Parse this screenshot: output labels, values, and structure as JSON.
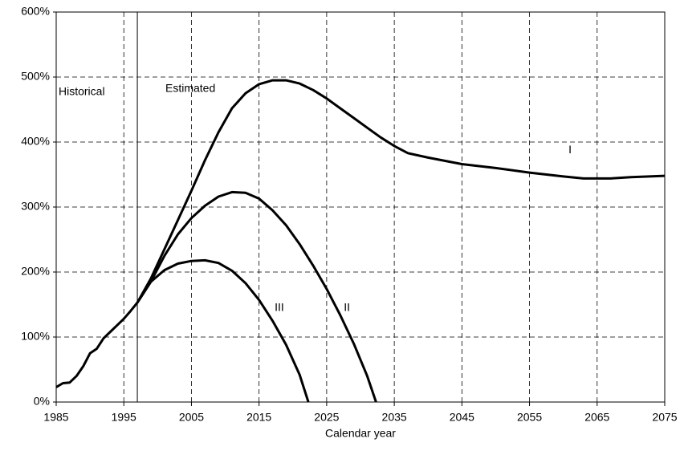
{
  "chart_data": {
    "type": "line",
    "x_label": "Calendar year",
    "annotations": [
      "Historical",
      "Estimated"
    ],
    "divider_x": 1997,
    "xlim": [
      1985,
      2075
    ],
    "xticks": [
      1985,
      1995,
      2005,
      2015,
      2025,
      2035,
      2045,
      2055,
      2065,
      2075
    ],
    "ylim": [
      0,
      600
    ],
    "yticks": [
      {
        "value": 0,
        "label": "0%"
      },
      {
        "value": 100,
        "label": "100%"
      },
      {
        "value": 200,
        "label": "200%"
      },
      {
        "value": 300,
        "label": "300%"
      },
      {
        "value": 400,
        "label": "400%"
      },
      {
        "value": 500,
        "label": "500%"
      },
      {
        "value": 600,
        "label": "600%"
      }
    ],
    "grid": true,
    "series": [
      {
        "name": "I",
        "color": "#000000",
        "x": [
          1985,
          1986,
          1987,
          1988,
          1989,
          1990,
          1991,
          1992,
          1993,
          1994,
          1995,
          1996,
          1997,
          1999,
          2001,
          2003,
          2005,
          2007,
          2009,
          2011,
          2013,
          2015,
          2017,
          2019,
          2021,
          2023,
          2025,
          2027,
          2029,
          2031,
          2033,
          2035,
          2037,
          2040,
          2045,
          2050,
          2055,
          2060,
          2063,
          2067,
          2070,
          2075
        ],
        "values": [
          23,
          29,
          30,
          40,
          55,
          75,
          82,
          98,
          108,
          118,
          128,
          140,
          153,
          190,
          235,
          280,
          325,
          372,
          415,
          452,
          475,
          489,
          495,
          495,
          490,
          480,
          467,
          452,
          437,
          422,
          407,
          394,
          383,
          376,
          366,
          360,
          353,
          347,
          344,
          344,
          346,
          348
        ]
      },
      {
        "name": "II",
        "color": "#000000",
        "x": [
          1997,
          1999,
          2001,
          2003,
          2005,
          2007,
          2009,
          2011,
          2013,
          2015,
          2017,
          2019,
          2021,
          2023,
          2025,
          2027,
          2029,
          2031,
          2032.3
        ],
        "values": [
          153,
          185,
          225,
          258,
          283,
          302,
          316,
          323,
          322,
          313,
          295,
          272,
          243,
          210,
          174,
          134,
          90,
          40,
          0
        ]
      },
      {
        "name": "III",
        "color": "#000000",
        "x": [
          1997,
          1999,
          2001,
          2003,
          2005,
          2007,
          2009,
          2011,
          2013,
          2015,
          2017,
          2019,
          2021,
          2022.3
        ],
        "values": [
          153,
          185,
          203,
          213,
          217,
          218,
          214,
          202,
          183,
          157,
          125,
          88,
          42,
          0
        ]
      }
    ]
  }
}
